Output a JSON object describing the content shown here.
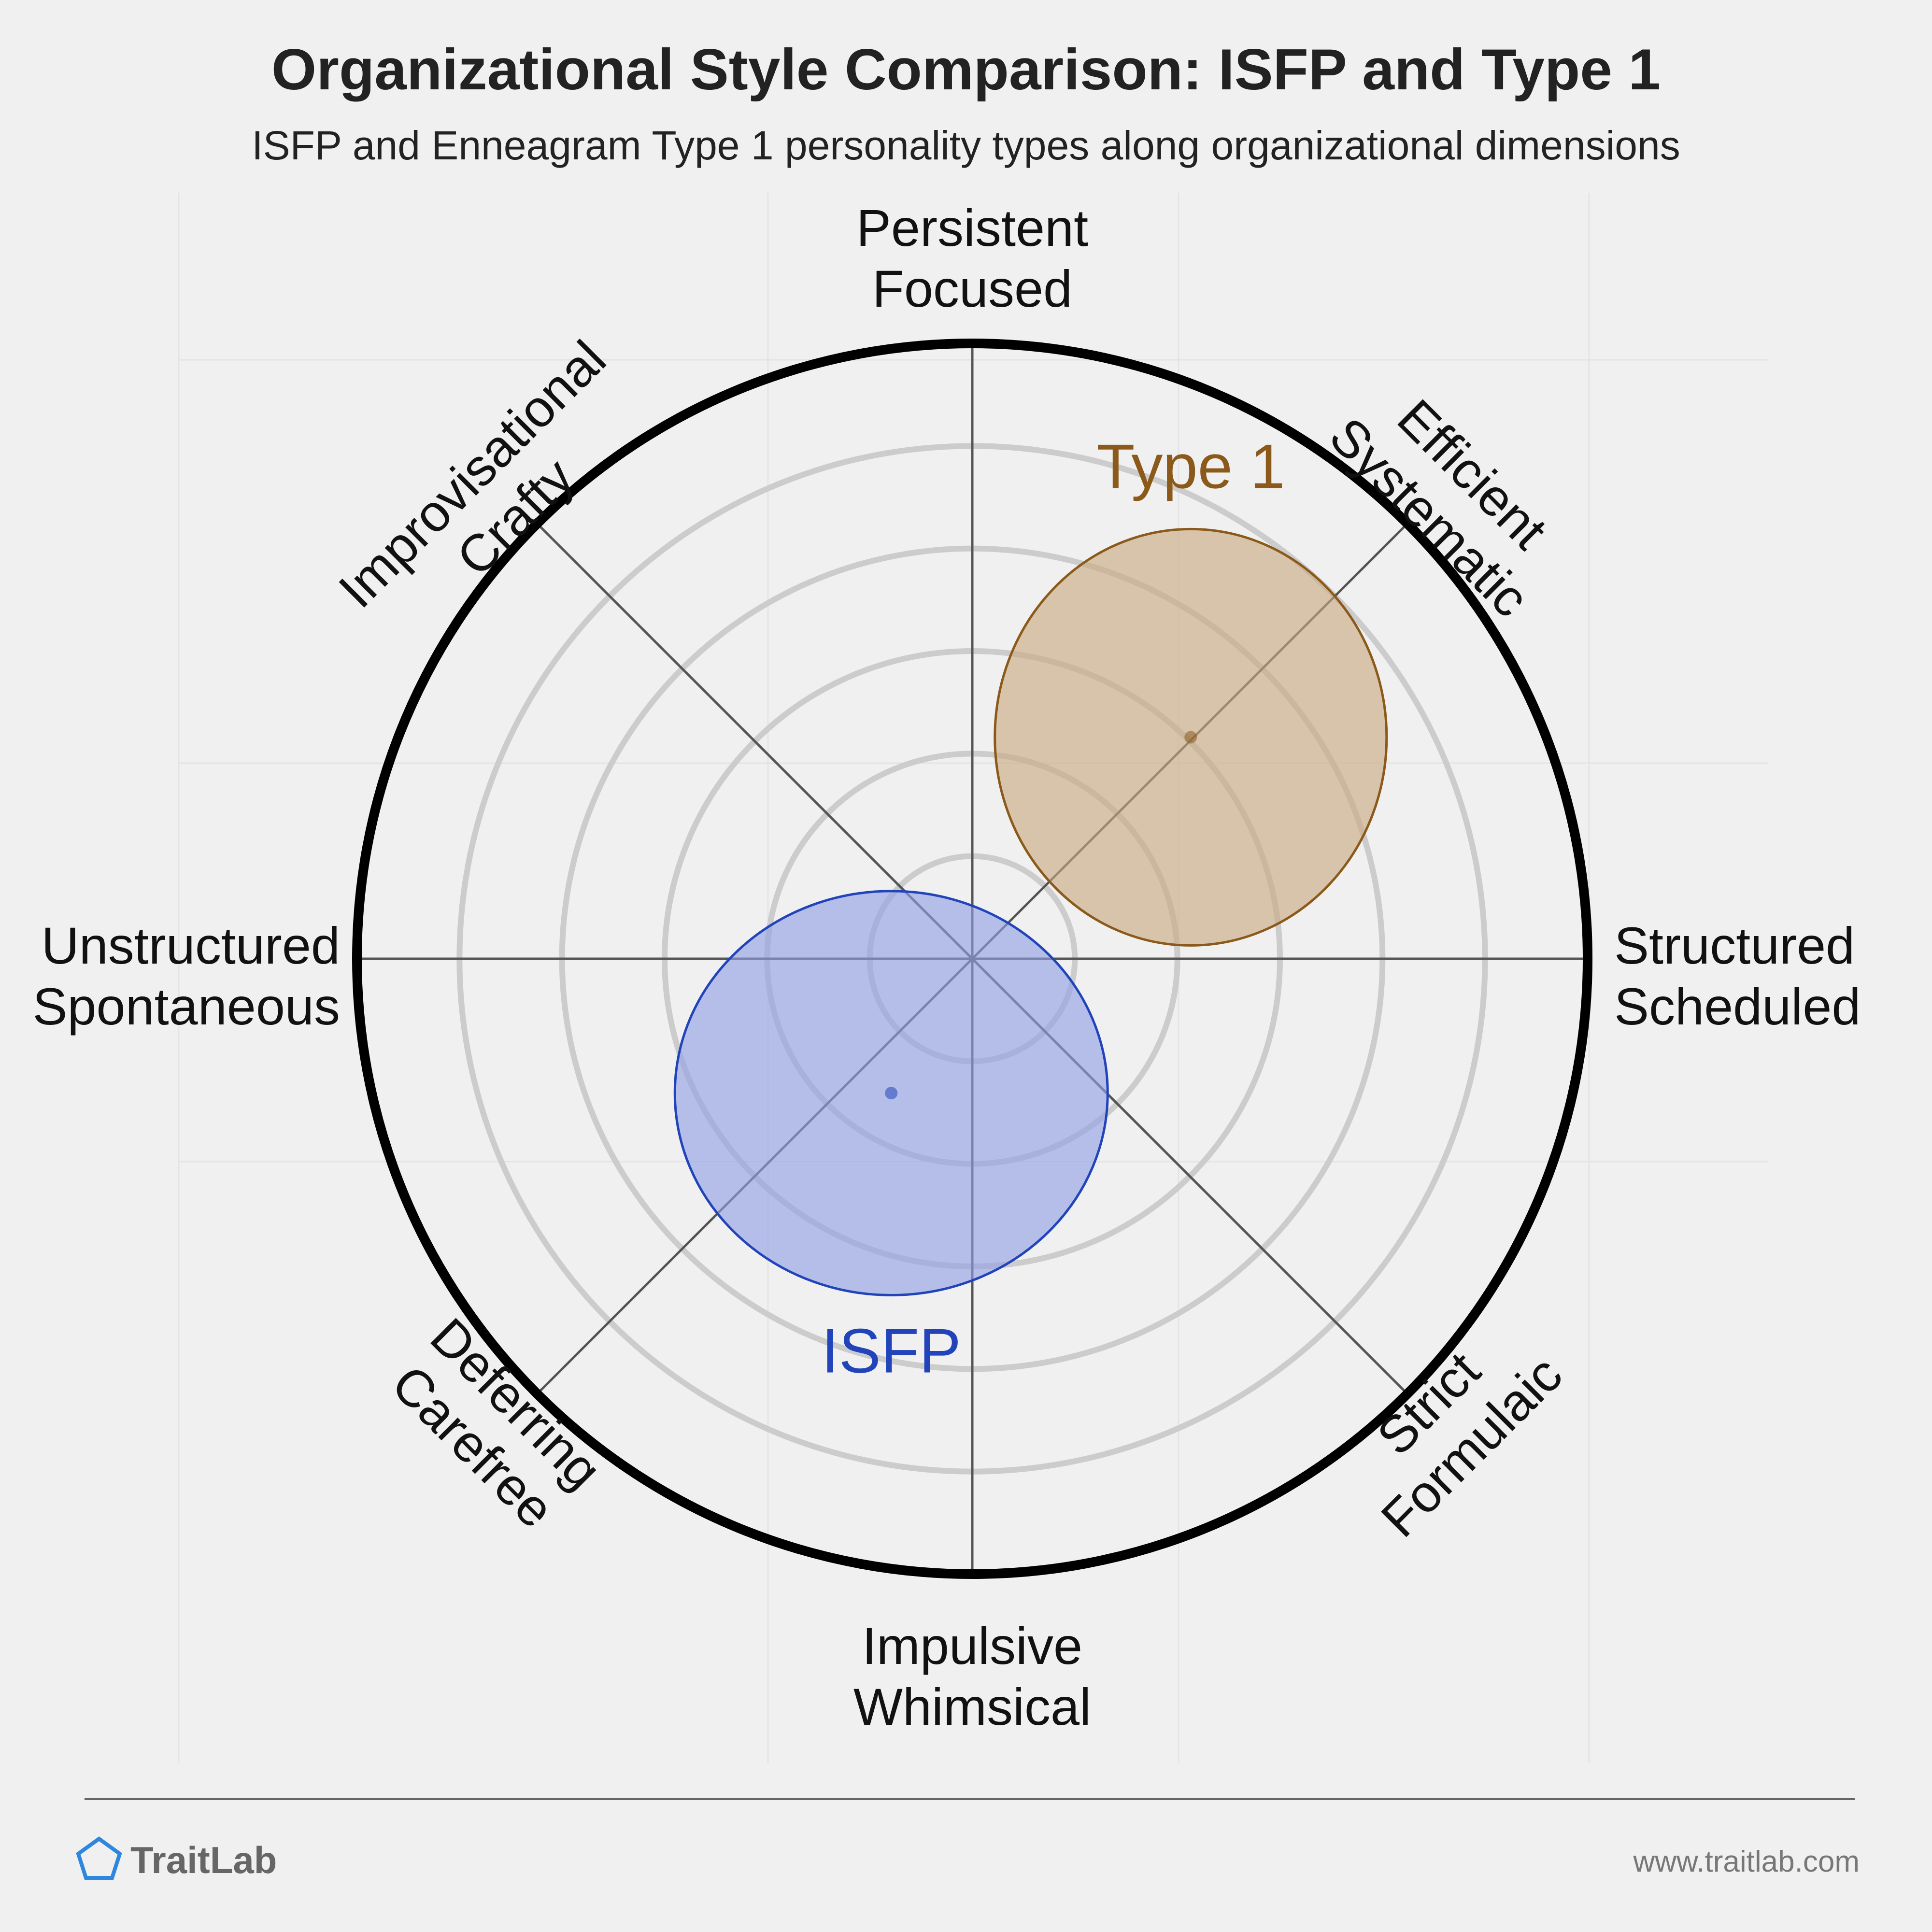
{
  "header": {
    "title": "Organizational Style Comparison: ISFP and Type 1",
    "subtitle": "ISFP and Enneagram Type 1 personality types along organizational dimensions"
  },
  "chart_data": {
    "type": "radar",
    "range": [
      0,
      6
    ],
    "rings": 6,
    "axes": [
      {
        "id": "n",
        "angle": 90,
        "lines": [
          "Persistent",
          "Focused"
        ]
      },
      {
        "id": "ne",
        "angle": 45,
        "lines": [
          "Efficient",
          "Systematic"
        ]
      },
      {
        "id": "e",
        "angle": 0,
        "lines": [
          "Structured",
          "Scheduled"
        ]
      },
      {
        "id": "se",
        "angle": -45,
        "lines": [
          "Strict",
          "Formulaic"
        ]
      },
      {
        "id": "s",
        "angle": -90,
        "lines": [
          "Impulsive",
          "Whimsical"
        ]
      },
      {
        "id": "sw",
        "angle": -135,
        "lines": [
          "Deferring",
          "Carefree"
        ]
      },
      {
        "id": "w",
        "angle": 180,
        "lines": [
          "Unstructured",
          "Spontaneous"
        ]
      },
      {
        "id": "nw",
        "angle": 135,
        "lines": [
          "Improvisational",
          "Crafty"
        ]
      }
    ],
    "series": [
      {
        "name": "Type 1",
        "x": 2.13,
        "y": 2.16,
        "rx": 1.91,
        "ry": 2.03,
        "color": "#8b5a1b",
        "fill": "#c8a980"
      },
      {
        "name": "ISFP",
        "x": -0.79,
        "y": -1.31,
        "rx": 2.11,
        "ry": 1.97,
        "color": "#2244bb",
        "fill": "#8f9fe3"
      }
    ]
  },
  "footer": {
    "brand": "TraitLab",
    "url": "www.traitlab.com",
    "brand_color": "#2e86de"
  }
}
